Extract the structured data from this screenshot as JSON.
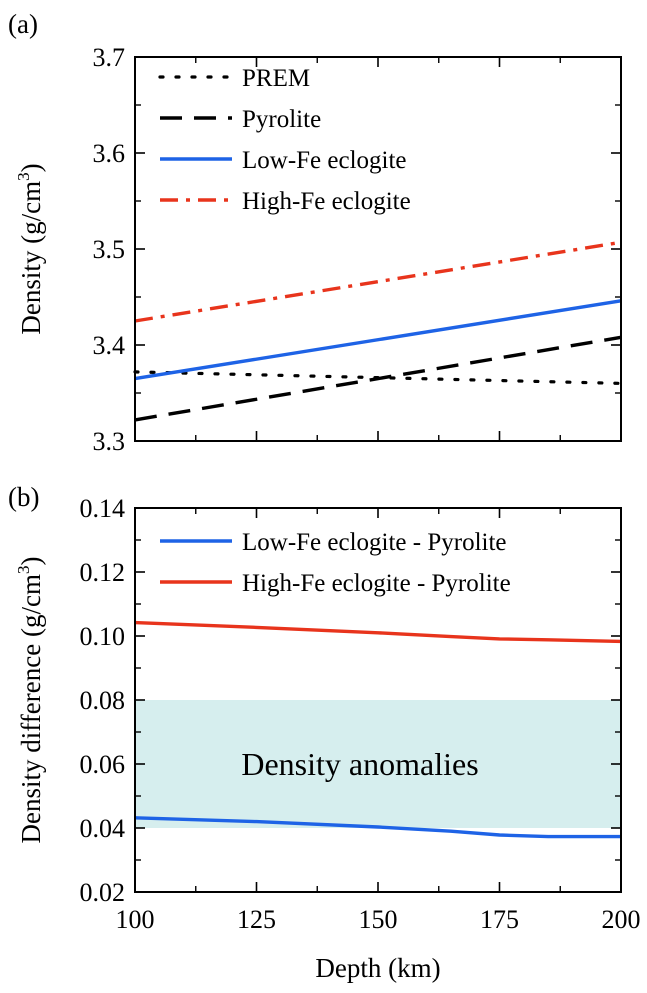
{
  "chart_data": [
    {
      "panel_label": "(a)",
      "type": "line",
      "ylabel": "Density (g/cm",
      "ylabel_sup": "3",
      "ylabel_close": ")",
      "xlim": [
        100,
        200
      ],
      "ylim": [
        3.3,
        3.7
      ],
      "xticks": [
        100,
        125,
        150,
        175,
        200
      ],
      "yticks": [
        "3.3",
        "3.4",
        "3.5",
        "3.6",
        "3.7"
      ],
      "legend_position": "top-left",
      "series": [
        {
          "name": "PREM",
          "style": "dotted",
          "color": "#000000",
          "x": [
            100,
            200
          ],
          "y": [
            3.372,
            3.36
          ]
        },
        {
          "name": "Pyrolite",
          "style": "dashed",
          "color": "#000000",
          "x": [
            100,
            200
          ],
          "y": [
            3.322,
            3.408
          ]
        },
        {
          "name": "Low-Fe eclogite",
          "style": "solid",
          "color": "#1e63e6",
          "x": [
            100,
            200
          ],
          "y": [
            3.365,
            3.446
          ]
        },
        {
          "name": "High-Fe eclogite",
          "style": "dashdot",
          "color": "#e8341c",
          "x": [
            100,
            200
          ],
          "y": [
            3.425,
            3.507
          ]
        }
      ]
    },
    {
      "panel_label": "(b)",
      "type": "line",
      "xlabel": "Depth (km)",
      "ylabel": "Density difference (g/cm",
      "ylabel_sup": "3",
      "ylabel_close": ")",
      "xlim": [
        100,
        200
      ],
      "ylim": [
        0.02,
        0.14
      ],
      "xticks": [
        "100",
        "125",
        "150",
        "175",
        "200"
      ],
      "yticks": [
        "0.02",
        "0.04",
        "0.06",
        "0.08",
        "0.10",
        "0.12",
        "0.14"
      ],
      "legend_position": "top-left",
      "band": {
        "label": "Density anomalies",
        "y_min": 0.04,
        "y_max": 0.08,
        "color": "#d6eeee"
      },
      "series": [
        {
          "name": "Low-Fe eclogite - Pyrolite",
          "style": "solid",
          "color": "#1e63e6",
          "x": [
            100,
            125,
            150,
            165,
            175,
            185,
            200
          ],
          "y": [
            0.0432,
            0.042,
            0.0403,
            0.039,
            0.0378,
            0.0373,
            0.0373
          ]
        },
        {
          "name": "High-Fe eclogite - Pyrolite",
          "style": "solid",
          "color": "#e8341c",
          "x": [
            100,
            125,
            150,
            165,
            175,
            185,
            200
          ],
          "y": [
            0.1042,
            0.1027,
            0.101,
            0.0998,
            0.0991,
            0.0988,
            0.0983
          ]
        }
      ]
    }
  ]
}
